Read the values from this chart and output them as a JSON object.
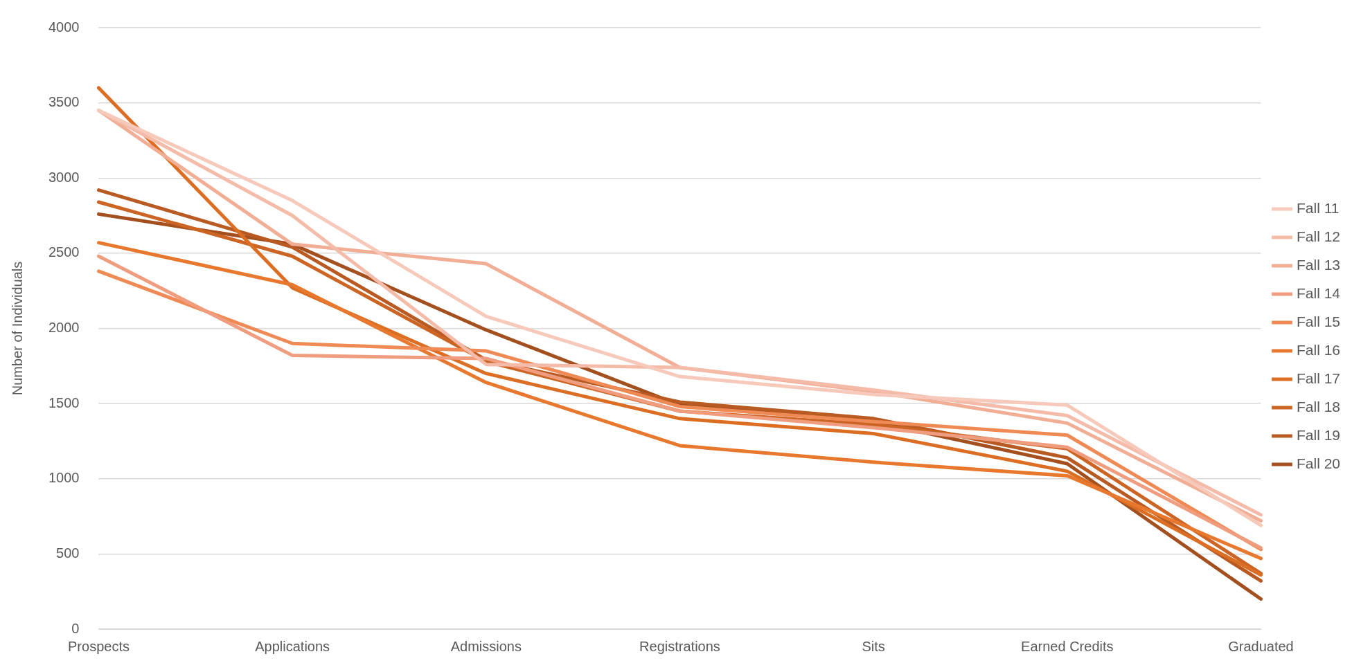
{
  "chart_data": {
    "type": "line",
    "ylabel": "Number of Individuals",
    "categories": [
      "Prospects",
      "Applications",
      "Admissions",
      "Registrations",
      "Sits",
      "Earned Credits",
      "Graduated"
    ],
    "ylim": [
      0,
      4000
    ],
    "yticks": [
      0,
      500,
      1000,
      1500,
      2000,
      2500,
      3000,
      3500,
      4000
    ],
    "grid": "y",
    "legend": "right",
    "marker": "none",
    "line_style": "solid",
    "series": [
      {
        "name": "Fall 11",
        "color": "#f6c9bb",
        "values": [
          3450,
          2850,
          2080,
          1680,
          1560,
          1490,
          690
        ]
      },
      {
        "name": "Fall 12",
        "color": "#f4bba8",
        "values": [
          3450,
          2750,
          1760,
          1740,
          1590,
          1420,
          760
        ]
      },
      {
        "name": "Fall 13",
        "color": "#f2ad95",
        "values": [
          3450,
          2560,
          2430,
          1740,
          1580,
          1370,
          720
        ]
      },
      {
        "name": "Fall 14",
        "color": "#f09c7e",
        "values": [
          2480,
          1820,
          1800,
          1450,
          1340,
          1210,
          540
        ]
      },
      {
        "name": "Fall 15",
        "color": "#ef8a55",
        "values": [
          2380,
          1900,
          1850,
          1480,
          1380,
          1290,
          530
        ]
      },
      {
        "name": "Fall 16",
        "color": "#e8782e",
        "values": [
          2570,
          2290,
          1640,
          1220,
          1110,
          1020,
          470
        ]
      },
      {
        "name": "Fall 17",
        "color": "#dc6e24",
        "values": [
          3600,
          2270,
          1700,
          1400,
          1300,
          1050,
          360
        ]
      },
      {
        "name": "Fall 18",
        "color": "#cc6524",
        "values": [
          2840,
          2480,
          1780,
          1450,
          1360,
          1200,
          370
        ]
      },
      {
        "name": "Fall 19",
        "color": "#b85a22",
        "values": [
          2920,
          2540,
          1790,
          1510,
          1400,
          1140,
          320
        ]
      },
      {
        "name": "Fall 20",
        "color": "#a44f1e",
        "values": [
          2760,
          2560,
          1990,
          1490,
          1380,
          1100,
          200
        ]
      }
    ]
  }
}
